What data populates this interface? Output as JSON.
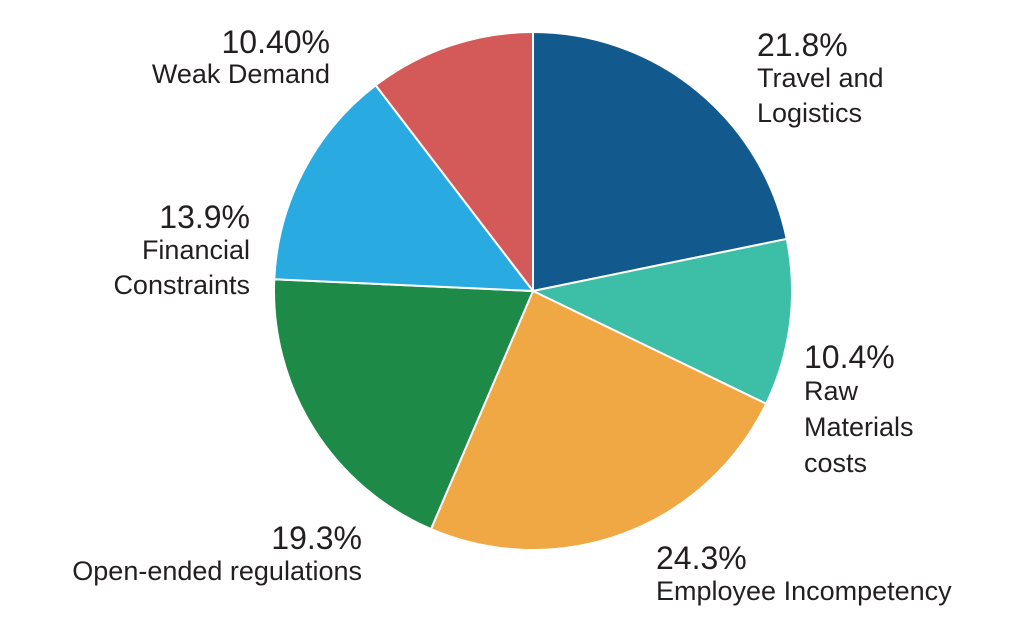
{
  "chart_data": {
    "type": "pie",
    "title": "",
    "slices": [
      {
        "value": 21.8,
        "value_label": "21.8%",
        "label_lines": [
          "Travel and",
          "Logistics"
        ],
        "color": "#125a8e"
      },
      {
        "value": 10.4,
        "value_label": "10.4%",
        "label_lines": [
          "Raw",
          "Materials",
          "costs"
        ],
        "color": "#3cbea7"
      },
      {
        "value": 24.3,
        "value_label": "24.3%",
        "label_lines": [
          "Employee Incompetency"
        ],
        "color": "#f0a845"
      },
      {
        "value": 19.3,
        "value_label": "19.3%",
        "label_lines": [
          "Open-ended regulations"
        ],
        "color": "#1e8a47"
      },
      {
        "value": 13.9,
        "value_label": "13.9%",
        "label_lines": [
          "Financial",
          "Constraints"
        ],
        "color": "#29abe2"
      },
      {
        "value": 10.4,
        "value_label": "10.40%",
        "label_lines": [
          "Weak Demand"
        ],
        "color": "#d45a5a"
      }
    ],
    "start_angle": "12 o'clock",
    "direction": "clockwise",
    "legend": "none",
    "labels": "outside"
  }
}
